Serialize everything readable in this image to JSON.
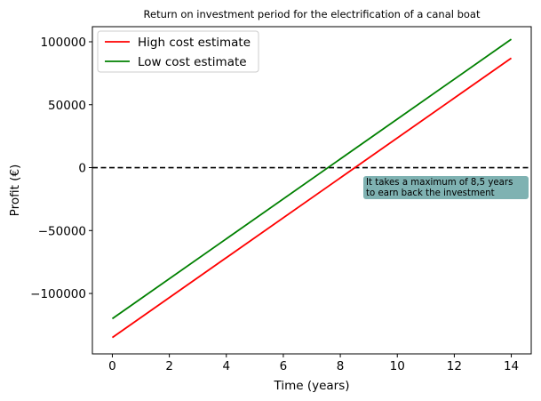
{
  "chart_data": {
    "type": "line",
    "title": "Return on investment period for the electrification of a canal boat",
    "xlabel": "Time (years)",
    "ylabel": "Profit (€)",
    "xlim": [
      -0.7,
      14.7
    ],
    "ylim": [
      -148000,
      112000
    ],
    "x_ticks": [
      0,
      2,
      4,
      6,
      8,
      10,
      12,
      14
    ],
    "y_ticks": [
      -100000,
      -50000,
      0,
      50000,
      100000
    ],
    "y_tick_labels": [
      "−100000",
      "−50000",
      "0",
      "50000",
      "100000"
    ],
    "grid": false,
    "legend_position": "upper-left",
    "series": [
      {
        "name": "High cost estimate",
        "color": "#ff0000",
        "x": [
          0,
          14
        ],
        "y": [
          -135000,
          87000
        ]
      },
      {
        "name": "Low cost estimate",
        "color": "#008000",
        "x": [
          0,
          14
        ],
        "y": [
          -120000,
          102000
        ]
      }
    ],
    "reference_line": {
      "y": 0,
      "style": "dashed",
      "color": "#000000"
    },
    "annotation": {
      "lines": [
        "It takes a maximum of 8,5 years",
        "to earn back the investment"
      ],
      "background": "#7fb2b2"
    }
  }
}
